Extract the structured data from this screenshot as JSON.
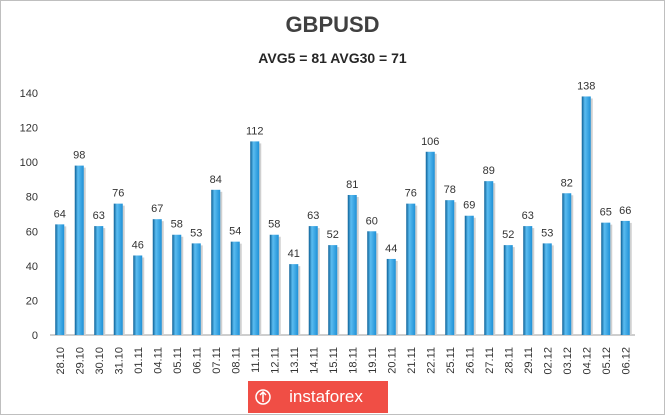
{
  "chart_data": {
    "type": "bar",
    "title": "GBPUSD",
    "subtitle": "AVG5 = 81 AVG30 = 71",
    "categories": [
      "28.10",
      "29.10",
      "30.10",
      "31.10",
      "01.11",
      "04.11",
      "05.11",
      "06.11",
      "07.11",
      "08.11",
      "11.11",
      "12.11",
      "13.11",
      "14.11",
      "15.11",
      "18.11",
      "19.11",
      "20.11",
      "21.11",
      "22.11",
      "25.11",
      "26.11",
      "27.11",
      "28.11",
      "29.11",
      "02.12",
      "03.12",
      "04.12",
      "05.12",
      "06.12"
    ],
    "values": [
      64,
      98,
      63,
      76,
      46,
      67,
      58,
      53,
      84,
      54,
      112,
      58,
      41,
      63,
      52,
      81,
      60,
      44,
      76,
      106,
      78,
      69,
      89,
      52,
      63,
      53,
      82,
      138,
      65,
      66
    ],
    "yticks": [
      0,
      20,
      40,
      60,
      80,
      100,
      120,
      140
    ],
    "ylim": [
      0,
      140
    ],
    "xlabel": "",
    "ylabel": "",
    "grid": false,
    "colors": {
      "bar_fill": "#1e90d6",
      "bar_dark": "#0a5f96",
      "bar_light": "#5bbcf0",
      "axis": "#9e9e9e",
      "label": "#333333"
    }
  },
  "branding": {
    "text": "instaforex",
    "color": "#f04e45"
  }
}
